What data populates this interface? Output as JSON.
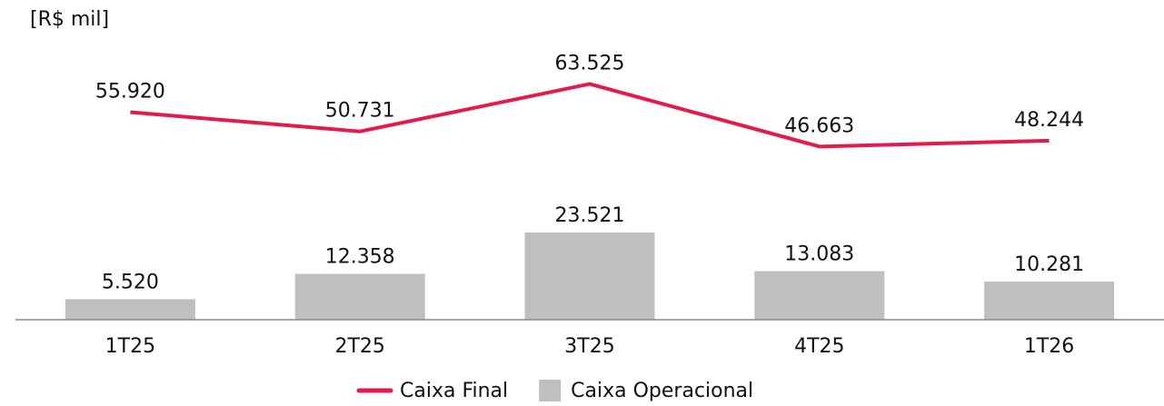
{
  "chart_data": {
    "type": "combo",
    "unit_label": "[R$ mil]",
    "categories": [
      "1T25",
      "2T25",
      "3T25",
      "4T25",
      "1T26"
    ],
    "ylim": [
      0,
      70000
    ],
    "series": [
      {
        "name": "Caixa Final",
        "type": "line",
        "color": "#e5194b",
        "values": [
          55920,
          50731,
          63525,
          46663,
          48244
        ],
        "value_labels": [
          "55.920",
          "50.731",
          "63.525",
          "46.663",
          "48.244"
        ]
      },
      {
        "name": "Caixa Operacional",
        "type": "bar",
        "color": "#bfbfbf",
        "values": [
          5520,
          12358,
          23521,
          13083,
          10281
        ],
        "value_labels": [
          "5.520",
          "12.358",
          "23.521",
          "13.083",
          "10.281"
        ]
      }
    ]
  }
}
